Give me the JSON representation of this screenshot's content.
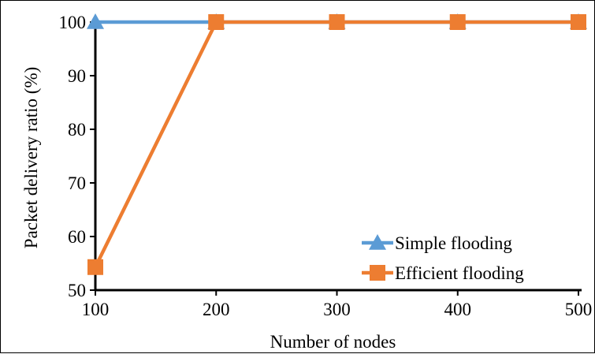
{
  "chart_data": {
    "type": "line",
    "title": "",
    "xlabel": "Number of nodes",
    "ylabel": "Packet delivery  ratio (%)",
    "x": [
      100,
      200,
      300,
      400,
      500
    ],
    "x_ticks": [
      "100",
      "200",
      "300",
      "400",
      "500"
    ],
    "y_ticks": [
      "50",
      "60",
      "70",
      "80",
      "90",
      "100"
    ],
    "xlim": [
      100,
      500
    ],
    "ylim": [
      50,
      100
    ],
    "grid": false,
    "legend_position": "bottom-right",
    "series": [
      {
        "name": "Simple flooding",
        "values": [
          100,
          100,
          100,
          100,
          100
        ],
        "color": "#5B9BD5",
        "marker": "triangle"
      },
      {
        "name": "Efficient flooding",
        "values": [
          54.3,
          100,
          100,
          100,
          100
        ],
        "color": "#ED7D31",
        "marker": "square"
      }
    ]
  }
}
